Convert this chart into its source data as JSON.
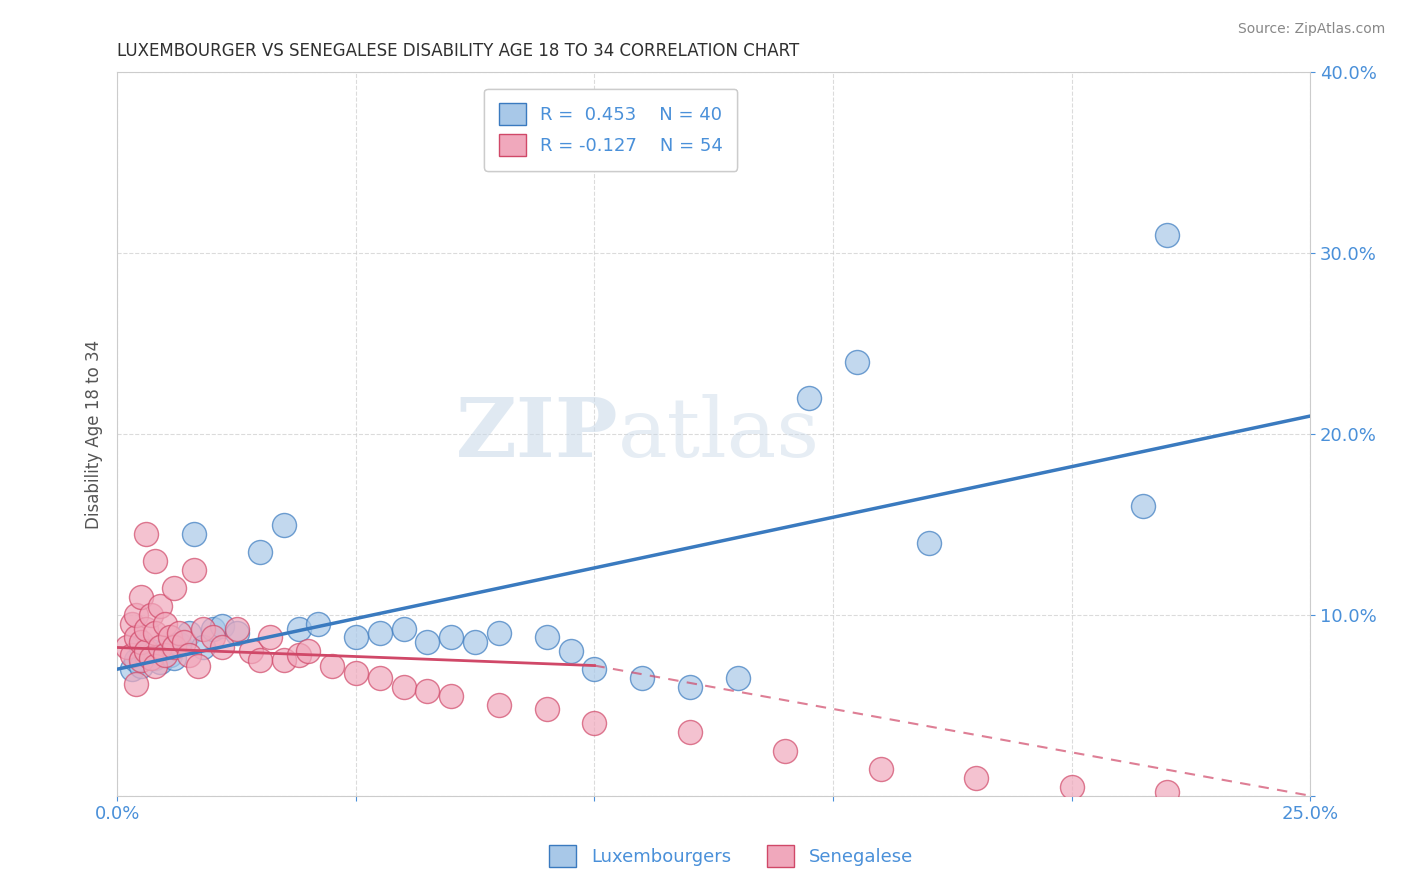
{
  "title": "LUXEMBOURGER VS SENEGALESE DISABILITY AGE 18 TO 34 CORRELATION CHART",
  "source": "Source: ZipAtlas.com",
  "ylabel": "Disability Age 18 to 34",
  "xlim": [
    0.0,
    0.25
  ],
  "ylim": [
    0.0,
    0.4
  ],
  "blue_color": "#a8c8e8",
  "blue_line_color": "#3a7abf",
  "pink_color": "#f0a8bc",
  "pink_line_color": "#e06080",
  "pink_line_solid_color": "#d04868",
  "title_color": "#303030",
  "axis_color": "#4a90d9",
  "background_color": "#ffffff",
  "grid_color": "#cccccc",
  "blue_trend": [
    0.0,
    0.07,
    0.25,
    0.21
  ],
  "pink_trend_solid": [
    0.0,
    0.082,
    0.1,
    0.072
  ],
  "pink_trend_dashed": [
    0.1,
    0.072,
    0.25,
    0.0
  ],
  "blue_x": [
    0.003,
    0.004,
    0.005,
    0.005,
    0.006,
    0.007,
    0.008,
    0.009,
    0.01,
    0.011,
    0.012,
    0.013,
    0.015,
    0.016,
    0.018,
    0.02,
    0.022,
    0.025,
    0.03,
    0.035,
    0.038,
    0.042,
    0.05,
    0.055,
    0.06,
    0.065,
    0.07,
    0.075,
    0.08,
    0.09,
    0.095,
    0.1,
    0.11,
    0.12,
    0.13,
    0.145,
    0.155,
    0.17,
    0.215,
    0.22
  ],
  "blue_y": [
    0.07,
    0.075,
    0.082,
    0.072,
    0.078,
    0.08,
    0.076,
    0.074,
    0.08,
    0.078,
    0.076,
    0.084,
    0.09,
    0.145,
    0.082,
    0.092,
    0.094,
    0.09,
    0.135,
    0.15,
    0.092,
    0.095,
    0.088,
    0.09,
    0.092,
    0.085,
    0.088,
    0.085,
    0.09,
    0.088,
    0.08,
    0.07,
    0.065,
    0.06,
    0.065,
    0.22,
    0.24,
    0.14,
    0.16,
    0.31
  ],
  "pink_x": [
    0.002,
    0.003,
    0.003,
    0.004,
    0.004,
    0.005,
    0.005,
    0.005,
    0.006,
    0.006,
    0.007,
    0.007,
    0.008,
    0.008,
    0.009,
    0.009,
    0.01,
    0.01,
    0.011,
    0.012,
    0.013,
    0.014,
    0.015,
    0.016,
    0.017,
    0.018,
    0.02,
    0.022,
    0.025,
    0.028,
    0.03,
    0.032,
    0.035,
    0.038,
    0.04,
    0.045,
    0.05,
    0.055,
    0.06,
    0.065,
    0.07,
    0.08,
    0.09,
    0.1,
    0.12,
    0.14,
    0.16,
    0.18,
    0.2,
    0.22,
    0.004,
    0.006,
    0.008,
    0.012
  ],
  "pink_y": [
    0.082,
    0.078,
    0.095,
    0.088,
    0.1,
    0.075,
    0.085,
    0.11,
    0.08,
    0.092,
    0.076,
    0.1,
    0.072,
    0.09,
    0.082,
    0.105,
    0.078,
    0.095,
    0.088,
    0.082,
    0.09,
    0.085,
    0.078,
    0.125,
    0.072,
    0.092,
    0.088,
    0.082,
    0.092,
    0.08,
    0.075,
    0.088,
    0.075,
    0.078,
    0.08,
    0.072,
    0.068,
    0.065,
    0.06,
    0.058,
    0.055,
    0.05,
    0.048,
    0.04,
    0.035,
    0.025,
    0.015,
    0.01,
    0.005,
    0.002,
    0.062,
    0.145,
    0.13,
    0.115
  ]
}
